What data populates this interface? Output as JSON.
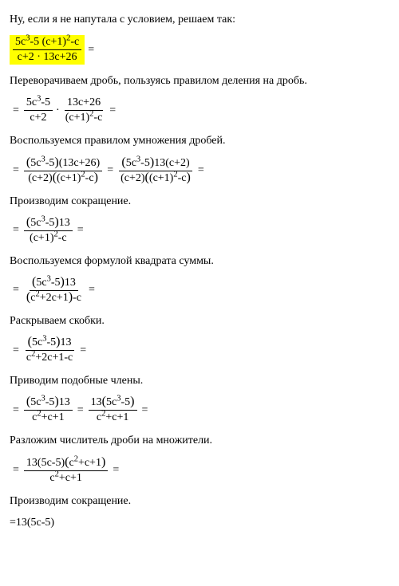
{
  "intro": "Ну, если я не напутала с условием, решаем так:",
  "step1_text": "Переворачиваем дробь, пользуясь правилом деления на дробь.",
  "step2_text": "Воспользуемся правилом умножения дробей.",
  "step3_text": "Производим сокращение.",
  "step4_text": "Воспользуемся формулой квадрата суммы.",
  "step5_text": "Раскрываем скобки.",
  "step6_text": "Приводим подобные члены.",
  "step7_text": "Разложим числитель дроби на множители.",
  "step8_text": "Производим сокращение.",
  "final": "=13(5c-5)",
  "f0": {
    "num": "5c³-5 (c+1)²-c",
    "den": "c+2 · 13c+26"
  },
  "f1": {
    "a_num": "5c³-5",
    "a_den": "c+2",
    "b_num": "13c+26",
    "b_den": "(c+1)²-c"
  },
  "f2": {
    "l_num": "(5c³-5)(13c+26)",
    "l_den": "(c+2)((c+1)²-c)",
    "r_num": "(5c³-5)13(c+2)",
    "r_den": "(c+2)((c+1)²-c)"
  },
  "f3": {
    "num": "(5c³-5)13",
    "den": "(c+1)²-c"
  },
  "f4": {
    "num": "(5c³-5)13",
    "den": "(c²+2c+1)-c"
  },
  "f5": {
    "num": "(5c³-5)13",
    "den": "c²+2c+1-c"
  },
  "f6": {
    "l_num": "(5c³-5)13",
    "l_den": "c²+c+1",
    "r_num": "13(5c³-5)",
    "r_den": "c²+c+1"
  },
  "f7": {
    "num": "13(5c-5)(c²+c+1)",
    "den": "c²+c+1"
  },
  "colors": {
    "highlight": "#ffff00",
    "text": "#000000",
    "background": "#ffffff"
  }
}
